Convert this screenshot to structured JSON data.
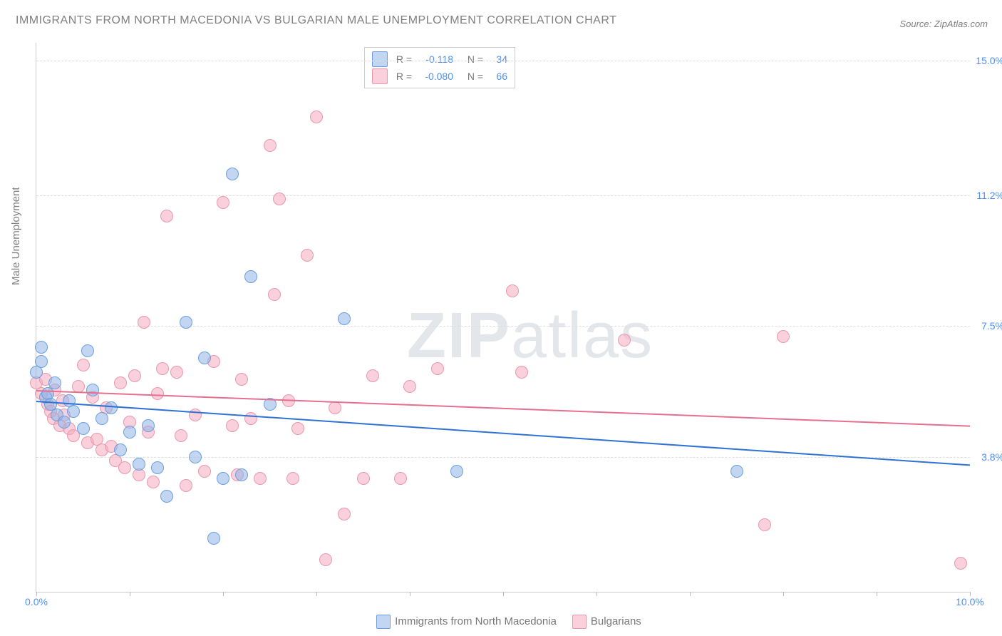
{
  "title": "IMMIGRANTS FROM NORTH MACEDONIA VS BULGARIAN MALE UNEMPLOYMENT CORRELATION CHART",
  "source": "Source: ZipAtlas.com",
  "y_axis_label": "Male Unemployment",
  "watermark": {
    "bold": "ZIP",
    "rest": "atlas"
  },
  "chart": {
    "type": "scatter_with_regression",
    "background_color": "#ffffff",
    "grid_color": "#dedede",
    "border_color": "#cccccc",
    "xlim": [
      0.0,
      10.0
    ],
    "ylim": [
      0.0,
      15.5
    ],
    "x_tick_marks": [
      0,
      1,
      2,
      3,
      4,
      5,
      6,
      7,
      8,
      9,
      10
    ],
    "x_tick_labels": [
      {
        "x": 0.0,
        "label": "0.0%"
      },
      {
        "x": 10.0,
        "label": "10.0%"
      }
    ],
    "y_ticks": [
      {
        "y": 3.8,
        "label": "3.8%"
      },
      {
        "y": 7.5,
        "label": "7.5%"
      },
      {
        "y": 11.2,
        "label": "11.2%"
      },
      {
        "y": 15.0,
        "label": "15.0%"
      }
    ],
    "axis_label_color": "#4f8ff0",
    "axis_label_fontsize": 14
  },
  "series": [
    {
      "name": "Immigrants from North Macedonia",
      "marker_fill": "rgba(144,181,232,0.55)",
      "marker_stroke": "#6b9fe0",
      "line_color": "#2f72d4",
      "r_value": "-0.118",
      "n_value": "34",
      "regression": {
        "x0": 0,
        "y0": 5.4,
        "x1": 10,
        "y1": 3.6
      },
      "points": [
        [
          0.05,
          6.9
        ],
        [
          0.05,
          6.5
        ],
        [
          0.1,
          5.5
        ],
        [
          0.12,
          5.6
        ],
        [
          0.15,
          5.3
        ],
        [
          0.2,
          5.9
        ],
        [
          0.22,
          5.0
        ],
        [
          0.3,
          4.8
        ],
        [
          0.35,
          5.4
        ],
        [
          0.4,
          5.1
        ],
        [
          0.5,
          4.6
        ],
        [
          0.55,
          6.8
        ],
        [
          0.6,
          5.7
        ],
        [
          0.7,
          4.9
        ],
        [
          0.8,
          5.2
        ],
        [
          0.9,
          4.0
        ],
        [
          1.0,
          4.5
        ],
        [
          1.1,
          3.6
        ],
        [
          1.2,
          4.7
        ],
        [
          1.3,
          3.5
        ],
        [
          1.4,
          2.7
        ],
        [
          1.6,
          7.6
        ],
        [
          1.7,
          3.8
        ],
        [
          1.8,
          6.6
        ],
        [
          1.9,
          1.5
        ],
        [
          2.0,
          3.2
        ],
        [
          2.1,
          11.8
        ],
        [
          2.2,
          3.3
        ],
        [
          2.3,
          8.9
        ],
        [
          2.5,
          5.3
        ],
        [
          3.3,
          7.7
        ],
        [
          4.5,
          3.4
        ],
        [
          7.5,
          3.4
        ],
        [
          0.0,
          6.2
        ]
      ]
    },
    {
      "name": "Bulgarians",
      "marker_fill": "rgba(244,170,190,0.55)",
      "marker_stroke": "#e799ad",
      "line_color": "#e56f8d",
      "r_value": "-0.080",
      "n_value": "66",
      "regression": {
        "x0": 0,
        "y0": 5.7,
        "x1": 10,
        "y1": 4.7
      },
      "points": [
        [
          0.0,
          5.9
        ],
        [
          0.05,
          5.6
        ],
        [
          0.1,
          6.0
        ],
        [
          0.12,
          5.3
        ],
        [
          0.15,
          5.1
        ],
        [
          0.18,
          4.9
        ],
        [
          0.2,
          5.7
        ],
        [
          0.25,
          4.7
        ],
        [
          0.28,
          5.4
        ],
        [
          0.3,
          5.0
        ],
        [
          0.35,
          4.6
        ],
        [
          0.4,
          4.4
        ],
        [
          0.45,
          5.8
        ],
        [
          0.5,
          6.4
        ],
        [
          0.55,
          4.2
        ],
        [
          0.6,
          5.5
        ],
        [
          0.65,
          4.3
        ],
        [
          0.7,
          4.0
        ],
        [
          0.75,
          5.2
        ],
        [
          0.8,
          4.1
        ],
        [
          0.85,
          3.7
        ],
        [
          0.9,
          5.9
        ],
        [
          0.95,
          3.5
        ],
        [
          1.0,
          4.8
        ],
        [
          1.05,
          6.1
        ],
        [
          1.1,
          3.3
        ],
        [
          1.15,
          7.6
        ],
        [
          1.2,
          4.5
        ],
        [
          1.25,
          3.1
        ],
        [
          1.3,
          5.6
        ],
        [
          1.35,
          6.3
        ],
        [
          1.4,
          10.6
        ],
        [
          1.5,
          6.2
        ],
        [
          1.55,
          4.4
        ],
        [
          1.6,
          3.0
        ],
        [
          1.7,
          5.0
        ],
        [
          1.8,
          3.4
        ],
        [
          1.9,
          6.5
        ],
        [
          2.0,
          11.0
        ],
        [
          2.1,
          4.7
        ],
        [
          2.15,
          3.3
        ],
        [
          2.2,
          6.0
        ],
        [
          2.3,
          4.9
        ],
        [
          2.4,
          3.2
        ],
        [
          2.5,
          12.6
        ],
        [
          2.55,
          8.4
        ],
        [
          2.6,
          11.1
        ],
        [
          2.7,
          5.4
        ],
        [
          2.75,
          3.2
        ],
        [
          2.8,
          4.6
        ],
        [
          2.9,
          9.5
        ],
        [
          3.0,
          13.4
        ],
        [
          3.1,
          0.9
        ],
        [
          3.2,
          5.2
        ],
        [
          3.3,
          2.2
        ],
        [
          3.5,
          3.2
        ],
        [
          3.6,
          6.1
        ],
        [
          3.9,
          3.2
        ],
        [
          4.0,
          5.8
        ],
        [
          4.3,
          6.3
        ],
        [
          5.1,
          8.5
        ],
        [
          5.2,
          6.2
        ],
        [
          6.3,
          7.1
        ],
        [
          7.8,
          1.9
        ],
        [
          8.0,
          7.2
        ],
        [
          9.9,
          0.8
        ]
      ]
    }
  ],
  "legend_top": {
    "r_label": "R =",
    "n_label": "N ="
  },
  "legend_bottom": {
    "items": [
      {
        "swatch_fill": "rgba(144,181,232,0.55)",
        "swatch_stroke": "#6b9fe0",
        "label": "Immigrants from North Macedonia"
      },
      {
        "swatch_fill": "rgba(244,170,190,0.55)",
        "swatch_stroke": "#e799ad",
        "label": "Bulgarians"
      }
    ]
  }
}
